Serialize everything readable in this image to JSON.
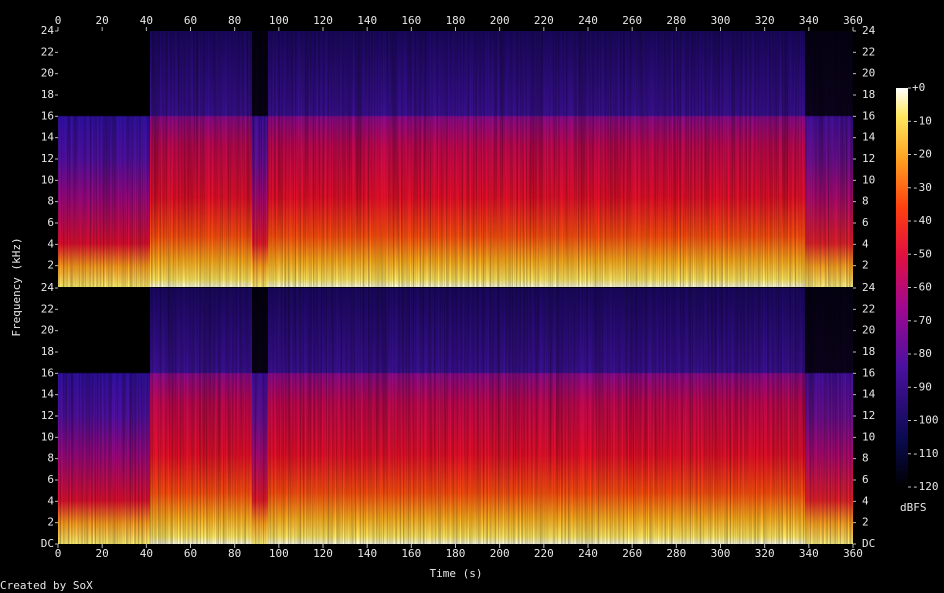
{
  "chart_data": {
    "type": "spectrogram",
    "x_label": "Time (s)",
    "y_label": "Frequency (kHz)",
    "footer": "Created by SoX",
    "xlim": [
      0,
      360
    ],
    "xticks": [
      0,
      20,
      40,
      60,
      80,
      100,
      120,
      140,
      160,
      180,
      200,
      220,
      240,
      260,
      280,
      300,
      320,
      340,
      360
    ],
    "channels": [
      {
        "ylim": [
          0,
          24
        ],
        "yticks": [
          2,
          4,
          6,
          8,
          10,
          12,
          14,
          16,
          18,
          20,
          22,
          24
        ]
      },
      {
        "ylim": [
          0,
          24
        ],
        "yticks": [
          {
            "value": 0,
            "label": "DC"
          },
          2,
          4,
          6,
          8,
          10,
          12,
          14,
          16,
          18,
          20,
          22,
          24
        ]
      }
    ],
    "colorbar": {
      "label": "dBFS",
      "zlim": [
        -120,
        0
      ],
      "ticks": [
        {
          "value": 0,
          "label": "+0"
        },
        -10,
        -20,
        -30,
        -40,
        -50,
        -60,
        -70,
        -80,
        -90,
        -100,
        -110,
        -120
      ]
    }
  }
}
